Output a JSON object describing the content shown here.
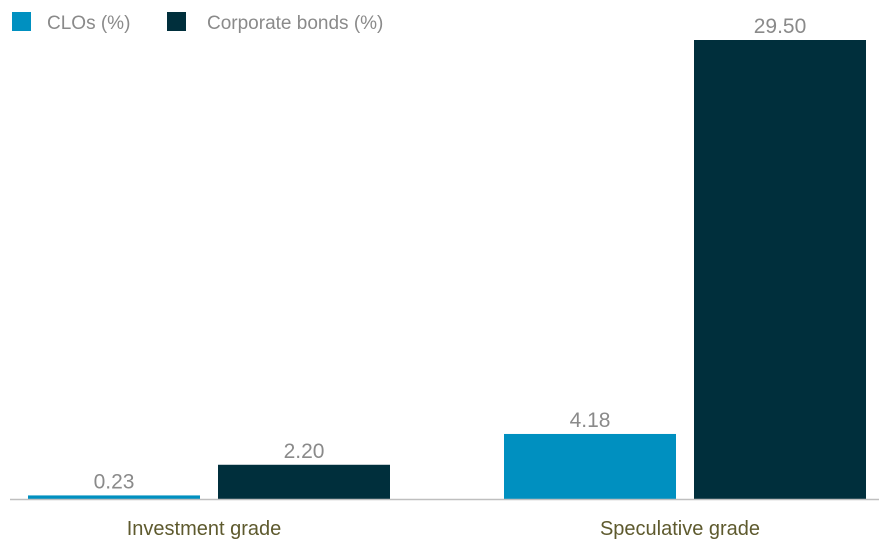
{
  "chart_data": {
    "type": "bar",
    "title": "",
    "xlabel": "",
    "ylabel": "",
    "categories": [
      "Investment grade",
      "Speculative grade"
    ],
    "series": [
      {
        "name": "CLOs (%)",
        "values": [
          0.23,
          4.18
        ],
        "labels": [
          "0.23",
          "4.18"
        ],
        "color": "#0090c0"
      },
      {
        "name": "Corporate bonds (%)",
        "values": [
          2.2,
          29.5
        ],
        "labels": [
          "2.20",
          "29.50"
        ],
        "color": "#002f3c"
      }
    ],
    "ylim": [
      0,
      29.5
    ],
    "grid": false,
    "legend": "top-left",
    "axis_color": "#bfbfbf"
  }
}
